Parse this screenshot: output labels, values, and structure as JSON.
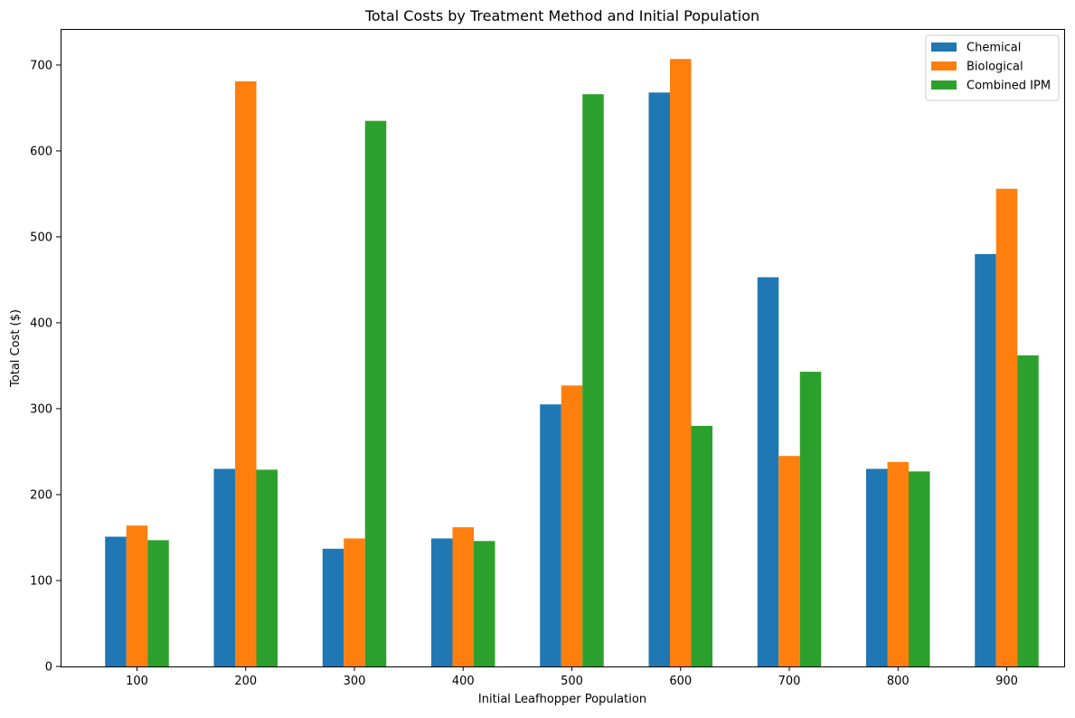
{
  "chart_data": {
    "type": "bar",
    "title": "Total Costs by Treatment Method and Initial Population",
    "xlabel": "Initial Leafhopper Population",
    "ylabel": "Total Cost ($)",
    "categories": [
      "100",
      "200",
      "300",
      "400",
      "500",
      "600",
      "700",
      "800",
      "900"
    ],
    "series": [
      {
        "name": "Chemical",
        "color": "#1f77b4",
        "values": [
          151,
          230,
          137,
          149,
          305,
          668,
          453,
          230,
          480
        ]
      },
      {
        "name": "Biological",
        "color": "#ff7f0e",
        "values": [
          164,
          681,
          149,
          162,
          327,
          707,
          245,
          238,
          556
        ]
      },
      {
        "name": "Combined IPM",
        "color": "#2ca02c",
        "values": [
          147,
          229,
          635,
          146,
          666,
          280,
          343,
          227,
          362
        ]
      }
    ],
    "ylim": [
      0,
      742
    ],
    "yticks": [
      0,
      100,
      200,
      300,
      400,
      500,
      600,
      700
    ],
    "grid": false,
    "legend_position": "top-right"
  }
}
